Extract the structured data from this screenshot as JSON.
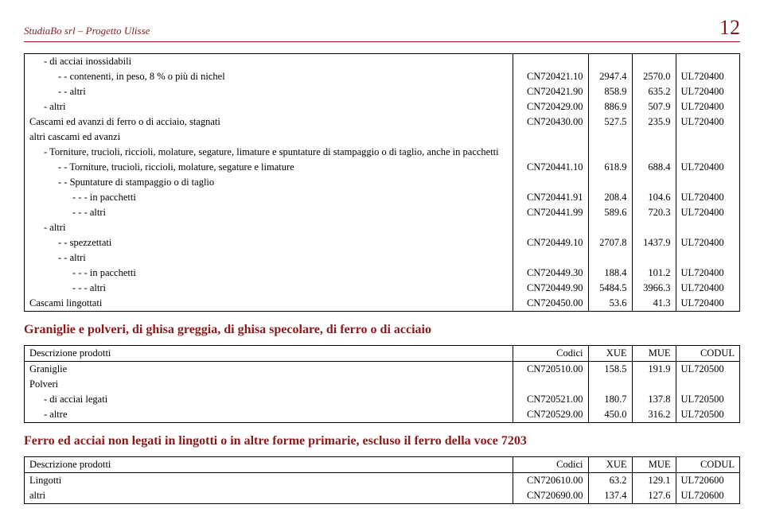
{
  "header": {
    "left": "StudiaBo srl – Progetto Ulisse",
    "page": "12"
  },
  "table1": {
    "rows": [
      {
        "indent": 1,
        "desc": "- di acciai inossidabili",
        "code": "",
        "xue": "",
        "mue": "",
        "codul": ""
      },
      {
        "indent": 2,
        "desc": "- - contenenti, in peso, 8 % o più di nichel",
        "code": "CN720421.10",
        "xue": "2947.4",
        "mue": "2570.0",
        "codul": "UL720400"
      },
      {
        "indent": 2,
        "desc": "- - altri",
        "code": "CN720421.90",
        "xue": "858.9",
        "mue": "635.2",
        "codul": "UL720400"
      },
      {
        "indent": 1,
        "desc": "- altri",
        "code": "CN720429.00",
        "xue": "886.9",
        "mue": "507.9",
        "codul": "UL720400"
      },
      {
        "indent": 0,
        "desc": "Cascami ed avanzi di ferro o di acciaio, stagnati",
        "code": "CN720430.00",
        "xue": "527.5",
        "mue": "235.9",
        "codul": "UL720400"
      },
      {
        "indent": 0,
        "desc": "altri cascami ed avanzi",
        "code": "",
        "xue": "",
        "mue": "",
        "codul": ""
      },
      {
        "indent": 1,
        "desc": "- Torniture, trucioli, riccioli, molature, segature, limature e spuntature di stampaggio o di taglio, anche in pacchetti",
        "code": "",
        "xue": "",
        "mue": "",
        "codul": ""
      },
      {
        "indent": 2,
        "desc": "- - Torniture, trucioli, riccioli, molature, segature e limature",
        "code": "CN720441.10",
        "xue": "618.9",
        "mue": "688.4",
        "codul": "UL720400"
      },
      {
        "indent": 2,
        "desc": "- - Spuntature di stampaggio o di taglio",
        "code": "",
        "xue": "",
        "mue": "",
        "codul": ""
      },
      {
        "indent": 3,
        "desc": "- - - in pacchetti",
        "code": "CN720441.91",
        "xue": "208.4",
        "mue": "104.6",
        "codul": "UL720400"
      },
      {
        "indent": 3,
        "desc": "- - - altri",
        "code": "CN720441.99",
        "xue": "589.6",
        "mue": "720.3",
        "codul": "UL720400"
      },
      {
        "indent": 1,
        "desc": "- altri",
        "code": "",
        "xue": "",
        "mue": "",
        "codul": ""
      },
      {
        "indent": 2,
        "desc": "- - spezzettati",
        "code": "CN720449.10",
        "xue": "2707.8",
        "mue": "1437.9",
        "codul": "UL720400"
      },
      {
        "indent": 2,
        "desc": "- - altri",
        "code": "",
        "xue": "",
        "mue": "",
        "codul": ""
      },
      {
        "indent": 3,
        "desc": "- - - in pacchetti",
        "code": "CN720449.30",
        "xue": "188.4",
        "mue": "101.2",
        "codul": "UL720400"
      },
      {
        "indent": 3,
        "desc": "- - - altri",
        "code": "CN720449.90",
        "xue": "5484.5",
        "mue": "3966.3",
        "codul": "UL720400"
      },
      {
        "indent": 0,
        "desc": "Cascami lingottati",
        "code": "CN720450.00",
        "xue": "53.6",
        "mue": "41.3",
        "codul": "UL720400"
      }
    ]
  },
  "section2_title": "Graniglie e polveri, di ghisa greggia, di ghisa specolare, di ferro o di acciaio",
  "table2": {
    "head": {
      "desc": "Descrizione prodotti",
      "code": "Codici",
      "xue": "XUE",
      "mue": "MUE",
      "codul": "CODUL"
    },
    "rows": [
      {
        "indent": 0,
        "desc": "Graniglie",
        "code": "CN720510.00",
        "xue": "158.5",
        "mue": "191.9",
        "codul": "UL720500"
      },
      {
        "indent": 0,
        "desc": "Polveri",
        "code": "",
        "xue": "",
        "mue": "",
        "codul": ""
      },
      {
        "indent": 1,
        "desc": "- di acciai legati",
        "code": "CN720521.00",
        "xue": "180.7",
        "mue": "137.8",
        "codul": "UL720500"
      },
      {
        "indent": 1,
        "desc": "- altre",
        "code": "CN720529.00",
        "xue": "450.0",
        "mue": "316.2",
        "codul": "UL720500"
      }
    ]
  },
  "section3_title": "Ferro ed acciai non legati in lingotti o in altre forme primarie, escluso il ferro della voce 7203",
  "table3": {
    "head": {
      "desc": "Descrizione prodotti",
      "code": "Codici",
      "xue": "XUE",
      "mue": "MUE",
      "codul": "CODUL"
    },
    "rows": [
      {
        "indent": 0,
        "desc": "Lingotti",
        "code": "CN720610.00",
        "xue": "63.2",
        "mue": "129.1",
        "codul": "UL720600"
      },
      {
        "indent": 0,
        "desc": "altri",
        "code": "CN720690.00",
        "xue": "137.4",
        "mue": "127.6",
        "codul": "UL720600"
      }
    ]
  }
}
